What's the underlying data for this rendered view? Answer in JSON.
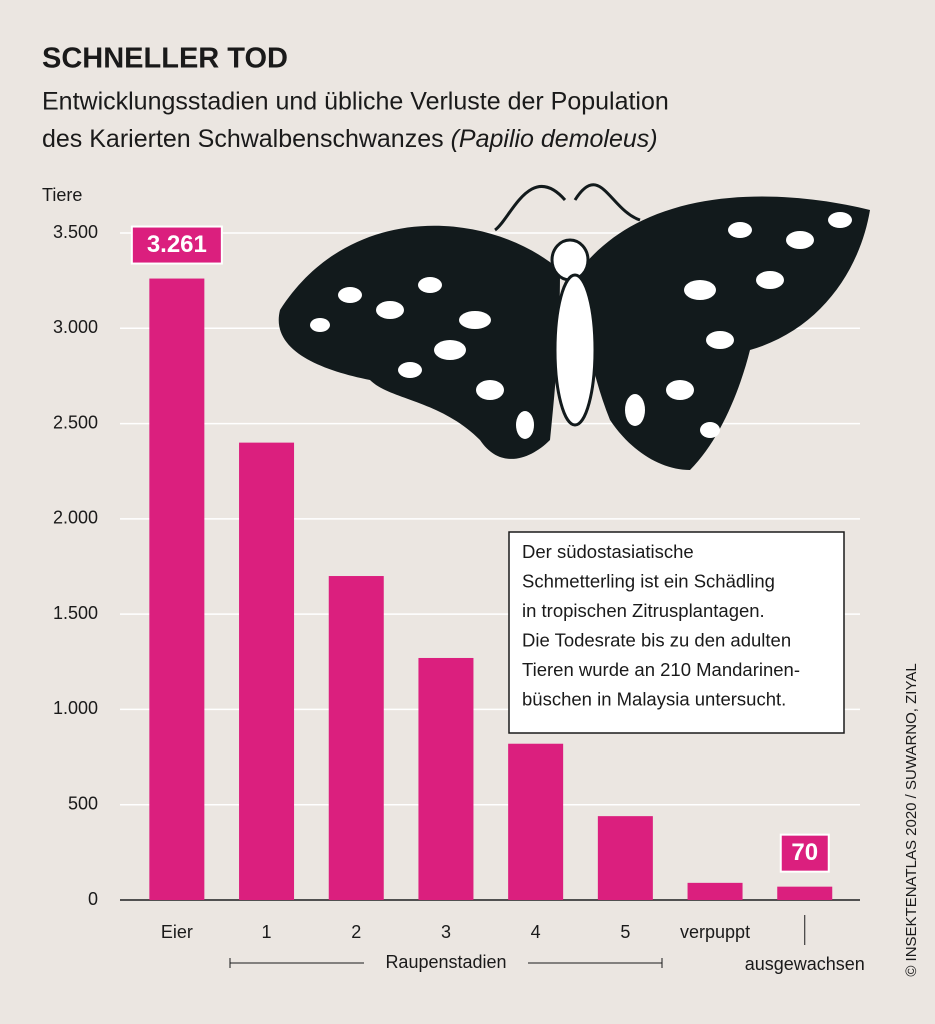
{
  "chart_data": {
    "type": "bar",
    "title": "SCHNELLER TOD",
    "subtitle": [
      "Entwicklungsstadien und übliche Verluste der Population",
      "des Karierten Schwalbenschwanzes",
      "(Papilio demoleus)"
    ],
    "y_label": "Tiere",
    "categories": [
      "Eier",
      "1",
      "2",
      "3",
      "4",
      "5",
      "verpuppt",
      "ausgewachsen"
    ],
    "group_label": "Raupenstadien",
    "values": [
      3261,
      2400,
      1700,
      1270,
      820,
      440,
      90,
      70
    ],
    "value_labels": [
      "3.261",
      null,
      null,
      null,
      null,
      null,
      null,
      "70"
    ],
    "color": "#db1f7e",
    "ylim": [
      0,
      3500
    ],
    "yticks": [
      0,
      500,
      {
        "value": 1000,
        "label": "1.000"
      },
      {
        "value": 1500,
        "label": "1.500"
      },
      {
        "value": 2000,
        "label": "2.000"
      },
      {
        "value": 2500,
        "label": "2.500"
      },
      {
        "value": 3000,
        "label": "3.000"
      },
      {
        "value": 3500,
        "label": "3.500"
      }
    ],
    "grid": true,
    "annotation": [
      "Der südostasiatische",
      "Schmetterling ist ein Schädling",
      "in tropischen Zitrusplantagen.",
      "Die Todesrate bis zu den adulten",
      "Tieren wurde an 210 Mandarinen-",
      "büschen in Malaysia untersucht."
    ],
    "credit": "© INSEKTENATLAS 2020 / SUWARNO, ZIYAL"
  }
}
